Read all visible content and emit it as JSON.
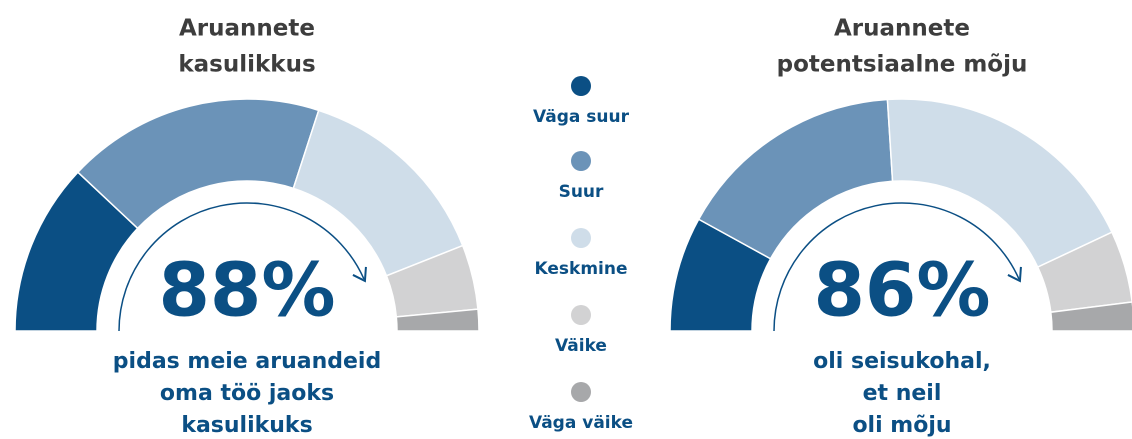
{
  "legend": {
    "items": [
      "Väga suur",
      "Suur",
      "Keskmine",
      "Väike",
      "Väga väike"
    ],
    "colors": [
      "#0b4f84",
      "#6b93b8",
      "#cfdde9",
      "#d2d2d3",
      "#a7a8aa"
    ]
  },
  "chart_data": [
    {
      "type": "gauge",
      "title": [
        "Aruannete",
        "kasulikkus"
      ],
      "headline": "88%",
      "caption": [
        "pidas meie aruandeid",
        "oma töö jaoks",
        "kasulikuks"
      ],
      "values": [
        24,
        36,
        28,
        9,
        3
      ]
    },
    {
      "type": "gauge",
      "title": [
        "Aruannete",
        "potentsiaalne mõju"
      ],
      "headline": "86%",
      "caption": [
        "oli seisukohal,",
        "et neil",
        "oli mõju"
      ],
      "values": [
        16,
        32,
        38,
        10,
        4
      ]
    }
  ]
}
